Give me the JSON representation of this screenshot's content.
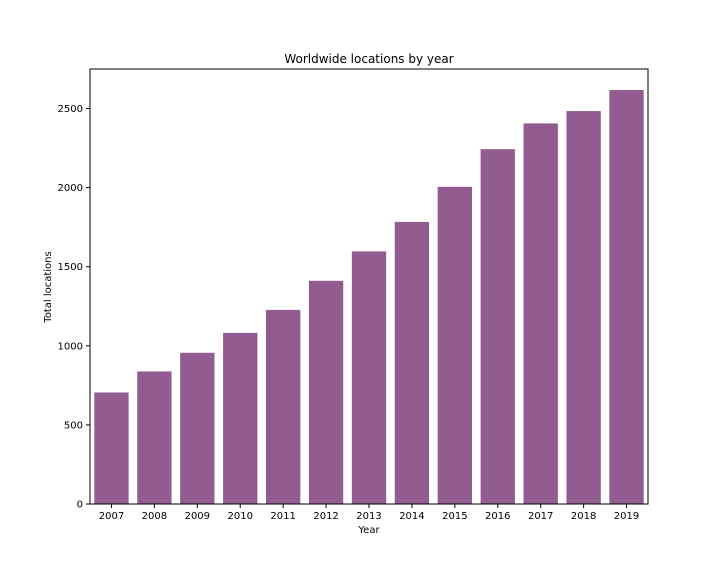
{
  "chart_data": {
    "type": "bar",
    "title": "Worldwide locations by year",
    "xlabel": "Year",
    "ylabel": "Total locations",
    "categories": [
      "2007",
      "2008",
      "2009",
      "2010",
      "2011",
      "2012",
      "2013",
      "2014",
      "2015",
      "2016",
      "2017",
      "2018",
      "2019"
    ],
    "values": [
      705,
      838,
      956,
      1082,
      1227,
      1411,
      1597,
      1783,
      2005,
      2243,
      2406,
      2484,
      2617
    ],
    "ylim": [
      0,
      2750
    ],
    "yticks": [
      0,
      500,
      1000,
      1500,
      2000,
      2500
    ],
    "bar_color": "#925c90",
    "grid": false,
    "legend": "none"
  }
}
